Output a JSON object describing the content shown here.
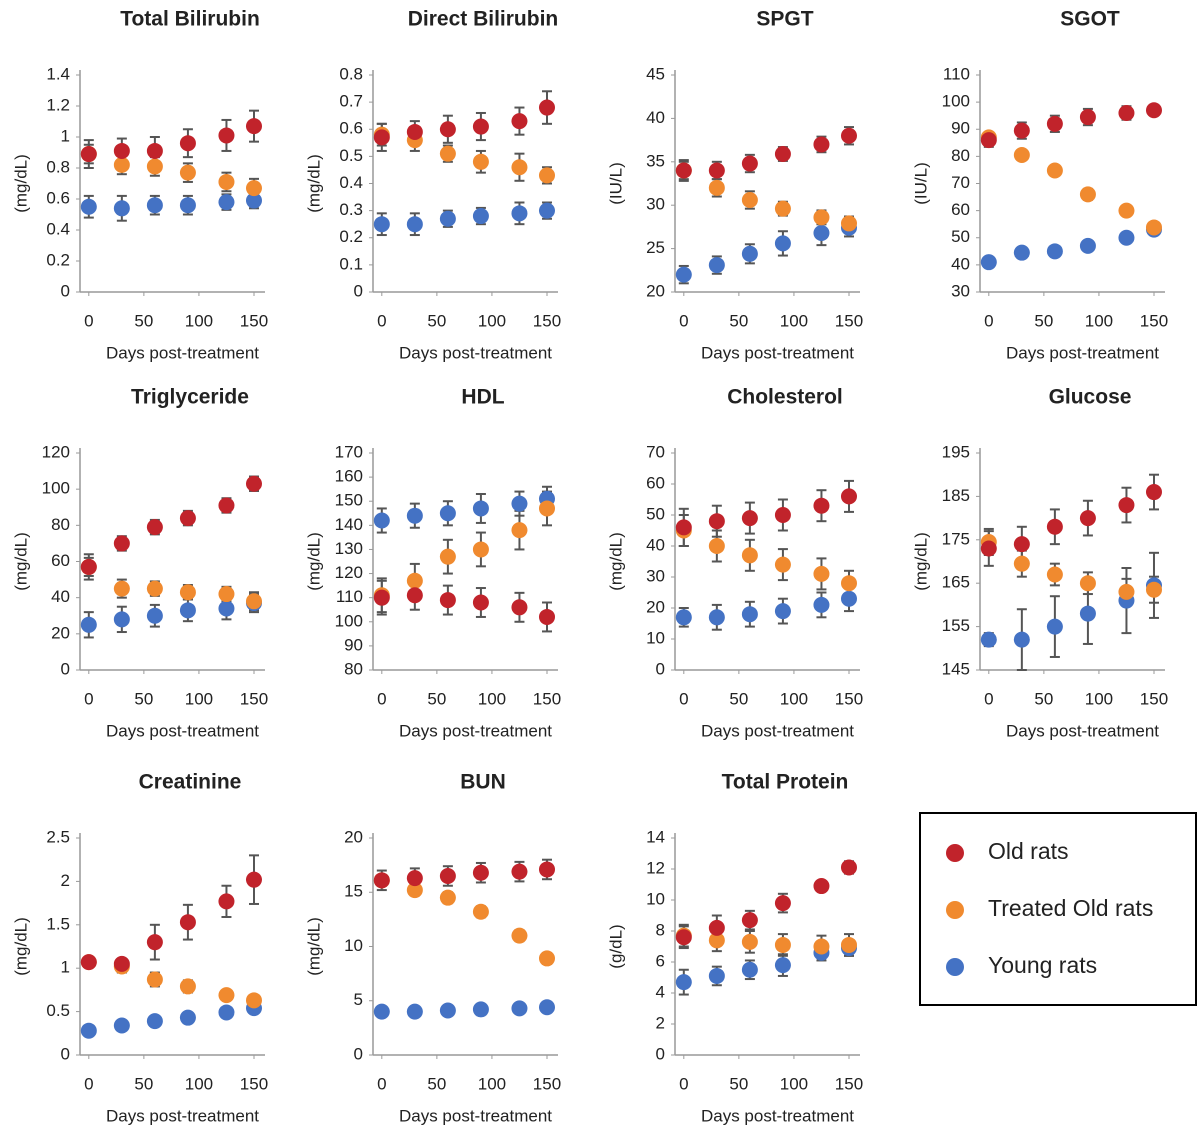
{
  "chart_data": [
    {
      "type": "scatter",
      "title": "Total Bilirubin",
      "ylabel": "(mg/dL)",
      "xlabel": "Days post-treatment",
      "x": [
        0,
        30,
        60,
        90,
        125,
        150
      ],
      "xlim": [
        -8,
        160
      ],
      "xticks": [
        0,
        50,
        100,
        150
      ],
      "ylim": [
        0,
        1.4
      ],
      "yticks": [
        0,
        0.2,
        0.4,
        0.6,
        0.8,
        1,
        1.2,
        1.4
      ],
      "series": [
        {
          "name": "Old rats",
          "color": "#c1232b",
          "values": [
            0.89,
            0.91,
            0.91,
            0.96,
            1.01,
            1.07
          ],
          "errors": [
            0.09,
            0.08,
            0.09,
            0.09,
            0.1,
            0.1
          ]
        },
        {
          "name": "Treated Old rats",
          "color": "#f08a2f",
          "values": [
            0.89,
            0.82,
            0.81,
            0.77,
            0.71,
            0.67
          ],
          "errors": [
            0.06,
            0.06,
            0.06,
            0.06,
            0.06,
            0.06
          ]
        },
        {
          "name": "Young rats",
          "color": "#4472c4",
          "values": [
            0.55,
            0.54,
            0.56,
            0.56,
            0.58,
            0.59
          ],
          "errors": [
            0.07,
            0.08,
            0.06,
            0.06,
            0.05,
            0.05
          ]
        }
      ]
    },
    {
      "type": "scatter",
      "title": "Direct Bilirubin",
      "ylabel": "(mg/dL)",
      "xlabel": "Days post-treatment",
      "x": [
        0,
        30,
        60,
        90,
        125,
        150
      ],
      "xlim": [
        -8,
        160
      ],
      "xticks": [
        0,
        50,
        100,
        150
      ],
      "ylim": [
        0,
        0.8
      ],
      "yticks": [
        0,
        0.1,
        0.2,
        0.3,
        0.4,
        0.5,
        0.6,
        0.7,
        0.8
      ],
      "series": [
        {
          "name": "Old rats",
          "color": "#c1232b",
          "values": [
            0.57,
            0.59,
            0.6,
            0.61,
            0.63,
            0.68
          ],
          "errors": [
            0.05,
            0.04,
            0.05,
            0.05,
            0.05,
            0.06
          ]
        },
        {
          "name": "Treated Old rats",
          "color": "#f08a2f",
          "values": [
            0.58,
            0.56,
            0.51,
            0.48,
            0.46,
            0.43
          ],
          "errors": [
            0.04,
            0.04,
            0.03,
            0.04,
            0.05,
            0.03
          ]
        },
        {
          "name": "Young rats",
          "color": "#4472c4",
          "values": [
            0.25,
            0.25,
            0.27,
            0.28,
            0.29,
            0.3
          ],
          "errors": [
            0.04,
            0.04,
            0.03,
            0.03,
            0.04,
            0.03
          ]
        }
      ]
    },
    {
      "type": "scatter",
      "title": "SPGT",
      "ylabel": "(IU/L)",
      "xlabel": "Days post-treatment",
      "x": [
        0,
        30,
        60,
        90,
        125,
        150
      ],
      "xlim": [
        -8,
        160
      ],
      "xticks": [
        0,
        50,
        100,
        150
      ],
      "ylim": [
        20,
        45
      ],
      "yticks": [
        20,
        25,
        30,
        35,
        40,
        45
      ],
      "series": [
        {
          "name": "Old rats",
          "color": "#c1232b",
          "values": [
            34,
            34,
            34.8,
            35.9,
            37,
            38
          ],
          "errors": [
            1.2,
            1,
            1,
            0.8,
            0.9,
            1
          ]
        },
        {
          "name": "Treated Old rats",
          "color": "#f08a2f",
          "values": [
            34,
            32,
            30.6,
            29.6,
            28.6,
            27.9
          ],
          "errors": [
            1,
            1,
            1,
            0.8,
            0.8,
            0.8
          ]
        },
        {
          "name": "Young rats",
          "color": "#4472c4",
          "values": [
            22,
            23.1,
            24.4,
            25.6,
            26.8,
            27.4
          ],
          "errors": [
            1,
            1,
            1.1,
            1.4,
            1.4,
            1
          ]
        }
      ]
    },
    {
      "type": "scatter",
      "title": "SGOT",
      "ylabel": "(IU/L)",
      "xlabel": "Days post-treatment",
      "x": [
        0,
        30,
        60,
        90,
        125,
        150
      ],
      "xlim": [
        -8,
        160
      ],
      "xticks": [
        0,
        50,
        100,
        150
      ],
      "ylim": [
        30,
        110
      ],
      "yticks": [
        30,
        40,
        50,
        60,
        70,
        80,
        90,
        100,
        110
      ],
      "series": [
        {
          "name": "Old rats",
          "color": "#c1232b",
          "values": [
            86,
            89.5,
            92,
            94.5,
            96,
            97
          ],
          "errors": [
            2.5,
            3,
            3,
            3,
            2.5,
            1.5
          ]
        },
        {
          "name": "Treated Old rats",
          "color": "#f08a2f",
          "values": [
            87,
            80.5,
            74.8,
            66,
            60,
            53.8
          ],
          "errors": [
            1.5,
            1.5,
            1.5,
            2,
            1.5,
            1.5
          ]
        },
        {
          "name": "Young rats",
          "color": "#4472c4",
          "values": [
            41,
            44.5,
            45,
            47,
            50,
            53
          ],
          "errors": [
            1,
            1,
            1,
            1.5,
            1,
            1
          ]
        }
      ]
    },
    {
      "type": "scatter",
      "title": "Triglyceride",
      "ylabel": "(mg/dL)",
      "xlabel": "Days post-treatment",
      "x": [
        0,
        30,
        60,
        90,
        125,
        150
      ],
      "xlim": [
        -8,
        160
      ],
      "xticks": [
        0,
        50,
        100,
        150
      ],
      "ylim": [
        0,
        120
      ],
      "yticks": [
        0,
        20,
        40,
        60,
        80,
        100,
        120
      ],
      "series": [
        {
          "name": "Old rats",
          "color": "#c1232b",
          "values": [
            57,
            70,
            79,
            84,
            91,
            103
          ],
          "errors": [
            7,
            4,
            4,
            4,
            4,
            4
          ]
        },
        {
          "name": "Treated Old rats",
          "color": "#f08a2f",
          "values": [
            57,
            45,
            45,
            43,
            42,
            38
          ],
          "errors": [
            5,
            5,
            4,
            4,
            4,
            5
          ]
        },
        {
          "name": "Young rats",
          "color": "#4472c4",
          "values": [
            25,
            28,
            30,
            33,
            34,
            37
          ],
          "errors": [
            7,
            7,
            6,
            6,
            6,
            5
          ]
        }
      ]
    },
    {
      "type": "scatter",
      "title": "HDL",
      "ylabel": "(mg/dL)",
      "xlabel": "Days post-treatment",
      "x": [
        0,
        30,
        60,
        90,
        125,
        150
      ],
      "xlim": [
        -8,
        160
      ],
      "xticks": [
        0,
        50,
        100,
        150
      ],
      "ylim": [
        80,
        170
      ],
      "yticks": [
        80,
        90,
        100,
        110,
        120,
        130,
        140,
        150,
        160,
        170
      ],
      "series": [
        {
          "name": "Old rats",
          "color": "#c1232b",
          "values": [
            110,
            111,
            109,
            108,
            106,
            102
          ],
          "errors": [
            7,
            6,
            6,
            6,
            6,
            6
          ]
        },
        {
          "name": "Treated Old rats",
          "color": "#f08a2f",
          "values": [
            111,
            117,
            127,
            130,
            138,
            147
          ],
          "errors": [
            7,
            7,
            7,
            7,
            8,
            7
          ]
        },
        {
          "name": "Young rats",
          "color": "#4472c4",
          "values": [
            142,
            144,
            145,
            147,
            149,
            151
          ],
          "errors": [
            5,
            5,
            5,
            6,
            5,
            5
          ]
        }
      ]
    },
    {
      "type": "scatter",
      "title": "Cholesterol",
      "ylabel": "(mg/dL)",
      "xlabel": "Days post-treatment",
      "x": [
        0,
        30,
        60,
        90,
        125,
        150
      ],
      "xlim": [
        -8,
        160
      ],
      "xticks": [
        0,
        50,
        100,
        150
      ],
      "ylim": [
        0,
        70
      ],
      "yticks": [
        0,
        10,
        20,
        30,
        40,
        50,
        60,
        70
      ],
      "series": [
        {
          "name": "Old rats",
          "color": "#c1232b",
          "values": [
            46,
            48,
            49,
            50,
            53,
            56
          ],
          "errors": [
            6,
            5,
            5,
            5,
            5,
            5
          ]
        },
        {
          "name": "Treated Old rats",
          "color": "#f08a2f",
          "values": [
            45,
            40,
            37,
            34,
            31,
            28
          ],
          "errors": [
            5,
            5,
            5,
            5,
            5,
            4
          ]
        },
        {
          "name": "Young rats",
          "color": "#4472c4",
          "values": [
            17,
            17,
            18,
            19,
            21,
            23
          ],
          "errors": [
            3,
            4,
            4,
            4,
            4,
            4
          ]
        }
      ]
    },
    {
      "type": "scatter",
      "title": "Glucose",
      "ylabel": "(mg/dL)",
      "xlabel": "Days post-treatment",
      "x": [
        0,
        30,
        60,
        90,
        125,
        150
      ],
      "xlim": [
        -8,
        160
      ],
      "xticks": [
        0,
        50,
        100,
        150
      ],
      "ylim": [
        145,
        195
      ],
      "yticks": [
        145,
        155,
        165,
        175,
        185,
        195
      ],
      "series": [
        {
          "name": "Old rats",
          "color": "#c1232b",
          "values": [
            173,
            174,
            178,
            180,
            183,
            186
          ],
          "errors": [
            4,
            4,
            4,
            4,
            4,
            4
          ]
        },
        {
          "name": "Treated Old rats",
          "color": "#f08a2f",
          "values": [
            174.5,
            169.5,
            167,
            165,
            163,
            163.5
          ],
          "errors": [
            3,
            3,
            2.5,
            2.5,
            3,
            3
          ]
        },
        {
          "name": "Young rats",
          "color": "#4472c4",
          "values": [
            152,
            152,
            155,
            158,
            161,
            164.5
          ],
          "errors": [
            1.5,
            7,
            7,
            7,
            7.5,
            7.5
          ]
        }
      ]
    },
    {
      "type": "scatter",
      "title": "Creatinine",
      "ylabel": "(mg/dL)",
      "xlabel": "Days post-treatment",
      "x": [
        0,
        30,
        60,
        90,
        125,
        150
      ],
      "xlim": [
        -8,
        160
      ],
      "xticks": [
        0,
        50,
        100,
        150
      ],
      "ylim": [
        0,
        2.5
      ],
      "yticks": [
        0,
        0.5,
        1,
        1.5,
        2,
        2.5
      ],
      "series": [
        {
          "name": "Old rats",
          "color": "#c1232b",
          "values": [
            1.07,
            1.05,
            1.3,
            1.53,
            1.77,
            2.02
          ],
          "errors": [
            0.05,
            0.05,
            0.2,
            0.2,
            0.18,
            0.28
          ]
        },
        {
          "name": "Treated Old rats",
          "color": "#f08a2f",
          "values": [
            1.07,
            1.02,
            0.87,
            0.79,
            0.69,
            0.63
          ],
          "errors": [
            0.06,
            0.07,
            0.08,
            0.07,
            0.05,
            0.05
          ]
        },
        {
          "name": "Young rats",
          "color": "#4472c4",
          "values": [
            0.28,
            0.34,
            0.39,
            0.43,
            0.49,
            0.54
          ],
          "errors": [
            0.03,
            0.03,
            0.03,
            0.03,
            0.03,
            0.03
          ]
        }
      ]
    },
    {
      "type": "scatter",
      "title": "BUN",
      "ylabel": "(mg/dL)",
      "xlabel": "Days post-treatment",
      "x": [
        0,
        30,
        60,
        90,
        125,
        150
      ],
      "xlim": [
        -8,
        160
      ],
      "xticks": [
        0,
        50,
        100,
        150
      ],
      "ylim": [
        0,
        20
      ],
      "yticks": [
        0,
        5,
        10,
        15,
        20
      ],
      "series": [
        {
          "name": "Old rats",
          "color": "#c1232b",
          "values": [
            16.1,
            16.3,
            16.5,
            16.8,
            16.9,
            17.1
          ],
          "errors": [
            0.9,
            0.9,
            0.9,
            0.9,
            0.9,
            0.9
          ]
        },
        {
          "name": "Treated Old rats",
          "color": "#f08a2f",
          "values": [
            16.1,
            15.2,
            14.5,
            13.2,
            11,
            8.9
          ],
          "errors": [
            0.5,
            0.5,
            0.5,
            0.5,
            0.5,
            0.5
          ]
        },
        {
          "name": "Young rats",
          "color": "#4472c4",
          "values": [
            4,
            4,
            4.1,
            4.2,
            4.3,
            4.4
          ],
          "errors": [
            0.2,
            0.2,
            0.2,
            0.2,
            0.2,
            0.2
          ]
        }
      ]
    },
    {
      "type": "scatter",
      "title": "Total Protein",
      "ylabel": "(g/dL)",
      "xlabel": "Days post-treatment",
      "x": [
        0,
        30,
        60,
        90,
        125,
        150
      ],
      "xlim": [
        -8,
        160
      ],
      "xticks": [
        0,
        50,
        100,
        150
      ],
      "ylim": [
        0,
        14
      ],
      "yticks": [
        0,
        2,
        4,
        6,
        8,
        10,
        12,
        14
      ],
      "series": [
        {
          "name": "Old rats",
          "color": "#c1232b",
          "values": [
            7.6,
            8.2,
            8.7,
            9.8,
            10.9,
            12.1
          ],
          "errors": [
            0.7,
            0.8,
            0.6,
            0.6,
            0.3,
            0.4
          ]
        },
        {
          "name": "Treated Old rats",
          "color": "#f08a2f",
          "values": [
            7.7,
            7.4,
            7.3,
            7.1,
            7,
            7.1
          ],
          "errors": [
            0.7,
            0.7,
            0.7,
            0.7,
            0.7,
            0.7
          ]
        },
        {
          "name": "Young rats",
          "color": "#4472c4",
          "values": [
            4.7,
            5.1,
            5.5,
            5.8,
            6.6,
            6.9
          ],
          "errors": [
            0.8,
            0.6,
            0.6,
            0.7,
            0.5,
            0.5
          ]
        }
      ]
    }
  ]
}
